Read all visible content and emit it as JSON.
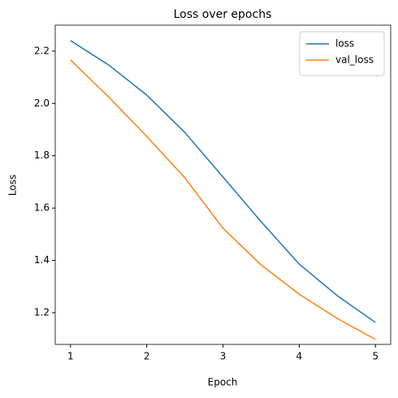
{
  "chart_data": {
    "type": "line",
    "title": "Loss over epochs",
    "x_label": "Epoch",
    "y_label": "Loss",
    "x": [
      1,
      1.5,
      2,
      2.5,
      3,
      3.5,
      4,
      4.5,
      5
    ],
    "series": [
      {
        "name": "loss",
        "color": "#1f77b4",
        "values": [
          2.24,
          2.147,
          2.032,
          1.889,
          1.719,
          1.548,
          1.386,
          1.265,
          1.163
        ]
      },
      {
        "name": "val_loss",
        "color": "#ff7f0e",
        "values": [
          2.166,
          2.025,
          1.874,
          1.716,
          1.523,
          1.383,
          1.271,
          1.178,
          1.098
        ]
      }
    ],
    "xlim": [
      0.8,
      5.2
    ],
    "xticks": [
      1,
      2,
      3,
      4,
      5
    ],
    "ylim": [
      1.079,
      2.299
    ],
    "yticks": [
      {
        "value": 1.2,
        "label": "1.2"
      },
      {
        "value": 1.4,
        "label": "1.4"
      },
      {
        "value": 1.6,
        "label": "1.6"
      },
      {
        "value": 1.8,
        "label": "1.8"
      },
      {
        "value": 2.0,
        "label": "2.0"
      },
      {
        "value": 2.2,
        "label": "2.2"
      }
    ],
    "legend": "upper right"
  }
}
